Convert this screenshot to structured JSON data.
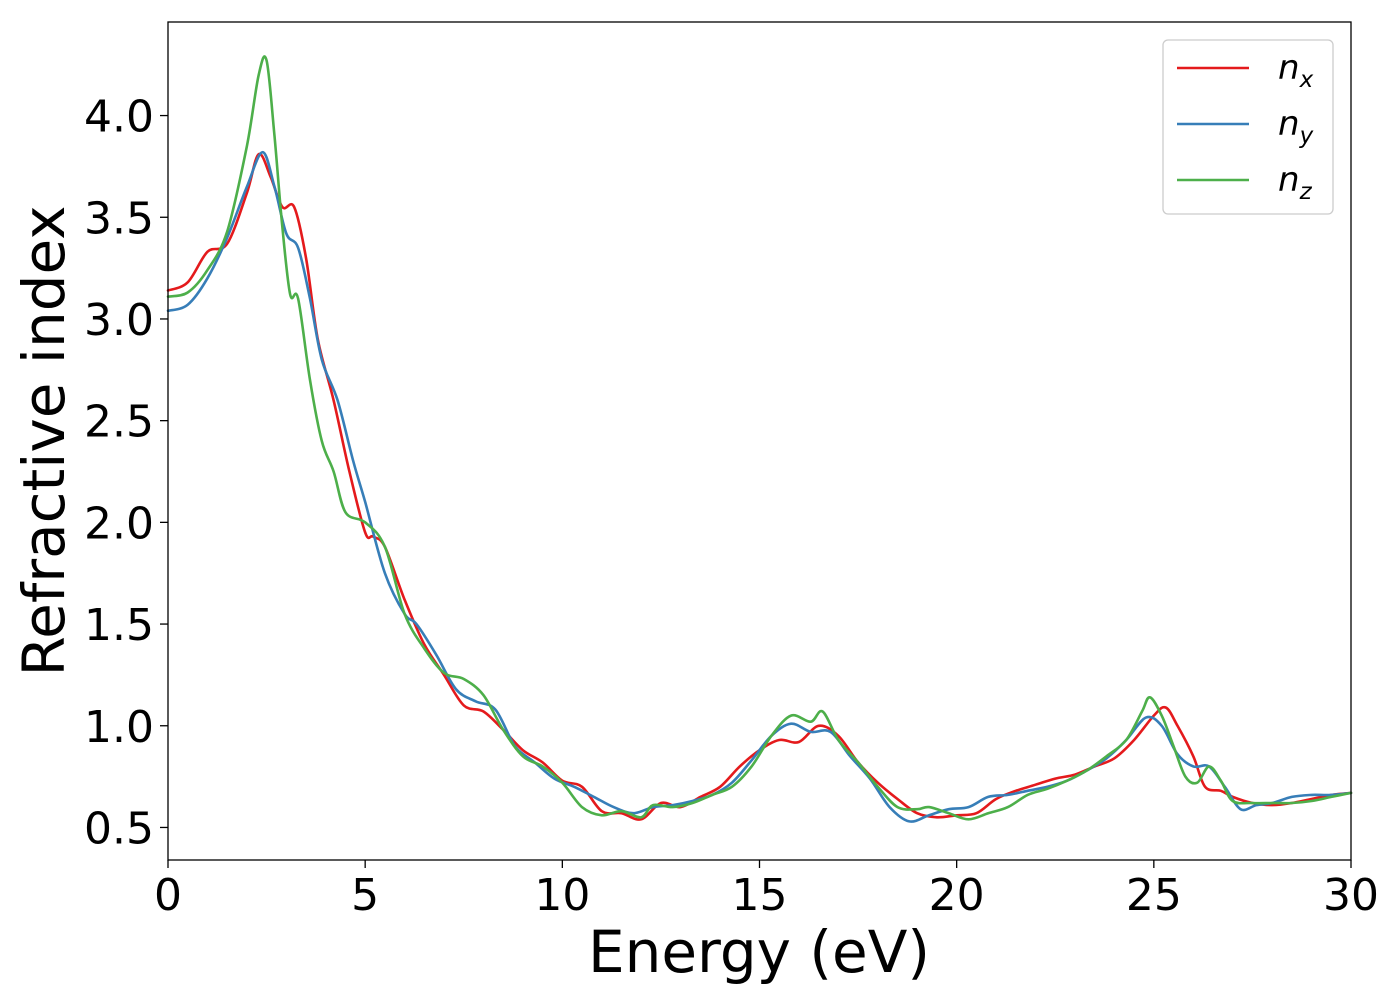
{
  "chart_data": {
    "type": "line",
    "xlabel": "Energy (eV)",
    "ylabel": "Refractive index",
    "xlim": [
      0,
      30
    ],
    "ylim": [
      0.34,
      4.46
    ],
    "xticks": [
      "0",
      "5",
      "10",
      "15",
      "20",
      "25",
      "30"
    ],
    "yticks": [
      "0.5",
      "1.0",
      "1.5",
      "2.0",
      "2.5",
      "3.0",
      "3.5",
      "4.0"
    ],
    "grid": false,
    "legend_position": "top-right",
    "series": [
      {
        "name": "n",
        "subscript": "x",
        "color": "#e41a1c",
        "points": [
          [
            0,
            3.14
          ],
          [
            0.5,
            3.18
          ],
          [
            1,
            3.33
          ],
          [
            1.5,
            3.37
          ],
          [
            2,
            3.62
          ],
          [
            2.3,
            3.81
          ],
          [
            2.6,
            3.7
          ],
          [
            2.9,
            3.55
          ],
          [
            3.2,
            3.55
          ],
          [
            3.5,
            3.3
          ],
          [
            3.8,
            2.9
          ],
          [
            4.2,
            2.6
          ],
          [
            4.6,
            2.25
          ],
          [
            5,
            1.95
          ],
          [
            5.2,
            1.93
          ],
          [
            5.5,
            1.88
          ],
          [
            6,
            1.62
          ],
          [
            6.5,
            1.4
          ],
          [
            7,
            1.25
          ],
          [
            7.5,
            1.1
          ],
          [
            8,
            1.07
          ],
          [
            8.5,
            0.98
          ],
          [
            9,
            0.88
          ],
          [
            9.5,
            0.82
          ],
          [
            10,
            0.73
          ],
          [
            10.5,
            0.7
          ],
          [
            11,
            0.58
          ],
          [
            11.5,
            0.57
          ],
          [
            12,
            0.54
          ],
          [
            12.5,
            0.62
          ],
          [
            13,
            0.6
          ],
          [
            13.5,
            0.65
          ],
          [
            14,
            0.7
          ],
          [
            14.5,
            0.8
          ],
          [
            15,
            0.88
          ],
          [
            15.5,
            0.93
          ],
          [
            16,
            0.92
          ],
          [
            16.5,
            1.0
          ],
          [
            17,
            0.95
          ],
          [
            17.5,
            0.82
          ],
          [
            18,
            0.72
          ],
          [
            18.5,
            0.64
          ],
          [
            19,
            0.57
          ],
          [
            19.5,
            0.55
          ],
          [
            20,
            0.56
          ],
          [
            20.5,
            0.57
          ],
          [
            21,
            0.64
          ],
          [
            21.5,
            0.68
          ],
          [
            22,
            0.71
          ],
          [
            22.5,
            0.74
          ],
          [
            23,
            0.76
          ],
          [
            23.5,
            0.8
          ],
          [
            24,
            0.84
          ],
          [
            24.5,
            0.93
          ],
          [
            25,
            1.05
          ],
          [
            25.3,
            1.09
          ],
          [
            25.6,
            1.0
          ],
          [
            26,
            0.85
          ],
          [
            26.3,
            0.7
          ],
          [
            26.7,
            0.68
          ],
          [
            27,
            0.65
          ],
          [
            27.5,
            0.62
          ],
          [
            28,
            0.61
          ],
          [
            28.5,
            0.62
          ],
          [
            29,
            0.64
          ],
          [
            29.5,
            0.66
          ],
          [
            30,
            0.67
          ]
        ]
      },
      {
        "name": "n",
        "subscript": "y",
        "color": "#377eb8",
        "points": [
          [
            0,
            3.04
          ],
          [
            0.5,
            3.07
          ],
          [
            1,
            3.2
          ],
          [
            1.5,
            3.4
          ],
          [
            2,
            3.65
          ],
          [
            2.4,
            3.82
          ],
          [
            2.7,
            3.65
          ],
          [
            3,
            3.42
          ],
          [
            3.3,
            3.35
          ],
          [
            3.6,
            3.1
          ],
          [
            3.9,
            2.8
          ],
          [
            4.3,
            2.6
          ],
          [
            4.7,
            2.3
          ],
          [
            5,
            2.1
          ],
          [
            5.5,
            1.75
          ],
          [
            6,
            1.55
          ],
          [
            6.3,
            1.5
          ],
          [
            6.8,
            1.35
          ],
          [
            7.3,
            1.18
          ],
          [
            7.8,
            1.12
          ],
          [
            8.3,
            1.08
          ],
          [
            8.8,
            0.9
          ],
          [
            9.3,
            0.82
          ],
          [
            9.8,
            0.74
          ],
          [
            10.3,
            0.7
          ],
          [
            10.8,
            0.65
          ],
          [
            11.3,
            0.6
          ],
          [
            11.8,
            0.57
          ],
          [
            12.3,
            0.6
          ],
          [
            12.8,
            0.61
          ],
          [
            13.3,
            0.63
          ],
          [
            13.8,
            0.66
          ],
          [
            14.3,
            0.72
          ],
          [
            14.8,
            0.83
          ],
          [
            15.3,
            0.95
          ],
          [
            15.8,
            1.01
          ],
          [
            16.3,
            0.97
          ],
          [
            16.8,
            0.97
          ],
          [
            17.3,
            0.85
          ],
          [
            17.8,
            0.74
          ],
          [
            18.3,
            0.6
          ],
          [
            18.8,
            0.53
          ],
          [
            19.3,
            0.56
          ],
          [
            19.8,
            0.59
          ],
          [
            20.3,
            0.6
          ],
          [
            20.8,
            0.65
          ],
          [
            21.3,
            0.66
          ],
          [
            21.8,
            0.68
          ],
          [
            22.3,
            0.7
          ],
          [
            22.8,
            0.73
          ],
          [
            23.3,
            0.78
          ],
          [
            23.8,
            0.84
          ],
          [
            24.3,
            0.93
          ],
          [
            24.8,
            1.04
          ],
          [
            25.2,
            1.0
          ],
          [
            25.6,
            0.86
          ],
          [
            26,
            0.8
          ],
          [
            26.4,
            0.8
          ],
          [
            26.8,
            0.7
          ],
          [
            27.2,
            0.59
          ],
          [
            27.6,
            0.61
          ],
          [
            28,
            0.62
          ],
          [
            28.5,
            0.65
          ],
          [
            29,
            0.66
          ],
          [
            29.5,
            0.66
          ],
          [
            30,
            0.67
          ]
        ]
      },
      {
        "name": "n",
        "subscript": "z",
        "color": "#4daf4a",
        "points": [
          [
            0,
            3.11
          ],
          [
            0.5,
            3.13
          ],
          [
            1,
            3.24
          ],
          [
            1.5,
            3.43
          ],
          [
            2,
            3.85
          ],
          [
            2.3,
            4.2
          ],
          [
            2.5,
            4.27
          ],
          [
            2.7,
            3.9
          ],
          [
            2.9,
            3.45
          ],
          [
            3.1,
            3.12
          ],
          [
            3.3,
            3.1
          ],
          [
            3.6,
            2.7
          ],
          [
            3.9,
            2.4
          ],
          [
            4.2,
            2.25
          ],
          [
            4.5,
            2.05
          ],
          [
            5,
            2.0
          ],
          [
            5.5,
            1.88
          ],
          [
            6,
            1.55
          ],
          [
            6.5,
            1.38
          ],
          [
            7,
            1.26
          ],
          [
            7.5,
            1.23
          ],
          [
            8,
            1.15
          ],
          [
            8.5,
            0.98
          ],
          [
            9,
            0.85
          ],
          [
            9.5,
            0.8
          ],
          [
            10,
            0.72
          ],
          [
            10.5,
            0.6
          ],
          [
            11,
            0.56
          ],
          [
            11.5,
            0.58
          ],
          [
            12,
            0.55
          ],
          [
            12.3,
            0.61
          ],
          [
            12.8,
            0.6
          ],
          [
            13.3,
            0.62
          ],
          [
            13.8,
            0.66
          ],
          [
            14.3,
            0.7
          ],
          [
            14.8,
            0.8
          ],
          [
            15.3,
            0.95
          ],
          [
            15.8,
            1.05
          ],
          [
            16.3,
            1.02
          ],
          [
            16.6,
            1.07
          ],
          [
            17,
            0.93
          ],
          [
            17.5,
            0.82
          ],
          [
            18,
            0.7
          ],
          [
            18.5,
            0.6
          ],
          [
            19,
            0.59
          ],
          [
            19.3,
            0.6
          ],
          [
            19.8,
            0.57
          ],
          [
            20.3,
            0.54
          ],
          [
            20.8,
            0.57
          ],
          [
            21.3,
            0.6
          ],
          [
            21.8,
            0.66
          ],
          [
            22.3,
            0.69
          ],
          [
            22.8,
            0.73
          ],
          [
            23.3,
            0.78
          ],
          [
            23.8,
            0.85
          ],
          [
            24.3,
            0.93
          ],
          [
            24.7,
            1.07
          ],
          [
            24.9,
            1.14
          ],
          [
            25.2,
            1.05
          ],
          [
            25.5,
            0.9
          ],
          [
            25.8,
            0.75
          ],
          [
            26.1,
            0.72
          ],
          [
            26.4,
            0.8
          ],
          [
            26.7,
            0.73
          ],
          [
            27,
            0.63
          ],
          [
            27.5,
            0.62
          ],
          [
            28,
            0.62
          ],
          [
            28.5,
            0.62
          ],
          [
            29,
            0.63
          ],
          [
            29.5,
            0.65
          ],
          [
            30,
            0.67
          ]
        ]
      }
    ]
  }
}
